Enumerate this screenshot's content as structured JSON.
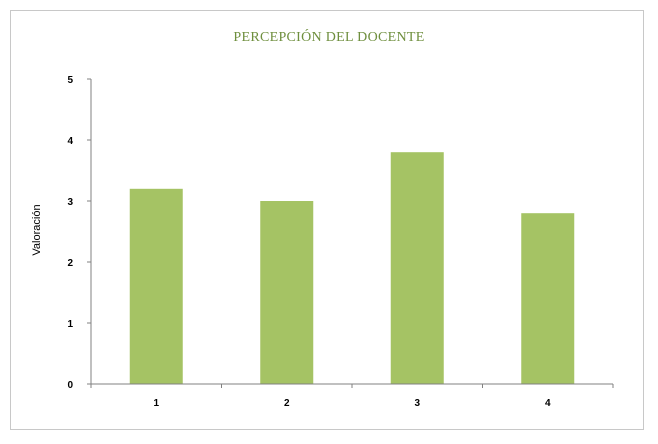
{
  "chart_data": {
    "type": "bar",
    "title": "PERCEPCIÓN DEL DOCENTE",
    "xlabel": "",
    "ylabel": "Valoración",
    "categories": [
      "1",
      "2",
      "3",
      "4"
    ],
    "values": [
      3.2,
      3.0,
      3.8,
      2.8
    ],
    "ylim": [
      0,
      5
    ],
    "yticks": [
      "0",
      "1",
      "2",
      "3",
      "4",
      "5"
    ],
    "grid": false,
    "legend": "none",
    "bar_color": "#a5c364"
  }
}
